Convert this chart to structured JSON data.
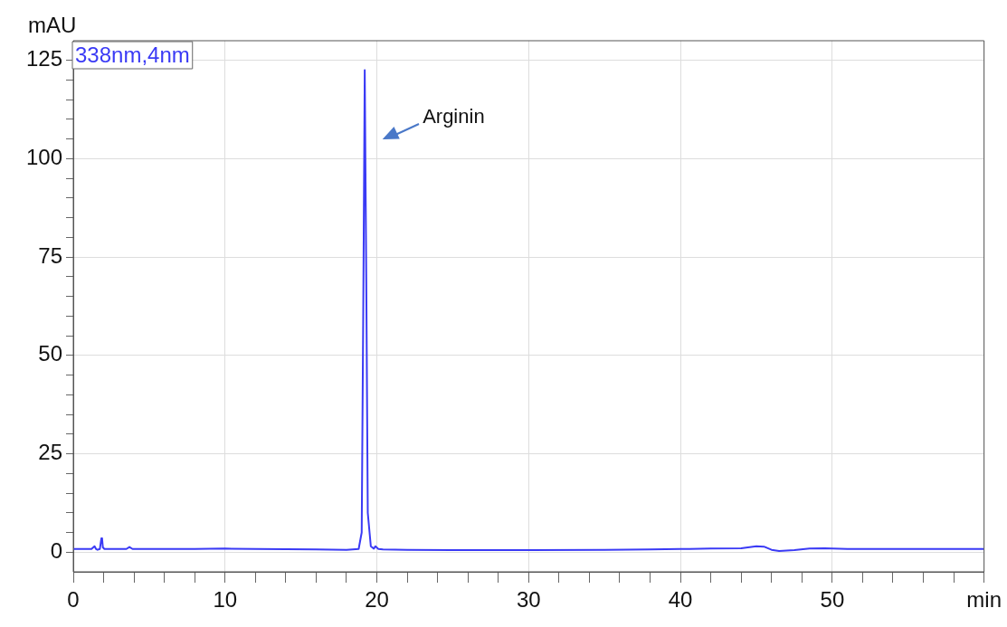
{
  "chart_data": {
    "type": "line",
    "ylabel": "mAU",
    "legend": "top left",
    "grid": true,
    "xlim": [
      0,
      60
    ],
    "ylim": [
      -5,
      130
    ],
    "xticks": [
      0,
      {
        "value": 2,
        "label": null
      },
      {
        "value": 4,
        "label": null
      },
      {
        "value": 6,
        "label": null
      },
      {
        "value": 8,
        "label": null
      },
      10,
      {
        "value": 12,
        "label": null
      },
      {
        "value": 14,
        "label": null
      },
      {
        "value": 16,
        "label": null
      },
      {
        "value": 18,
        "label": null
      },
      20,
      {
        "value": 22,
        "label": null
      },
      {
        "value": 24,
        "label": null
      },
      {
        "value": 26,
        "label": null
      },
      {
        "value": 28,
        "label": null
      },
      30,
      {
        "value": 32,
        "label": null
      },
      {
        "value": 34,
        "label": null
      },
      {
        "value": 36,
        "label": null
      },
      {
        "value": 38,
        "label": null
      },
      40,
      {
        "value": 42,
        "label": null
      },
      {
        "value": 44,
        "label": null
      },
      {
        "value": 46,
        "label": null
      },
      {
        "value": 48,
        "label": null
      },
      50,
      {
        "value": 52,
        "label": null
      },
      {
        "value": 54,
        "label": null
      },
      {
        "value": 56,
        "label": null
      },
      {
        "value": 58,
        "label": null
      },
      {
        "value": 60,
        "label": "min"
      }
    ],
    "yticks": [
      0,
      {
        "value": 5,
        "label": null
      },
      {
        "value": 10,
        "label": null
      },
      {
        "value": 15,
        "label": null
      },
      {
        "value": 20,
        "label": null
      },
      25,
      {
        "value": 30,
        "label": null
      },
      {
        "value": 35,
        "label": null
      },
      {
        "value": 40,
        "label": null
      },
      {
        "value": 45,
        "label": null
      },
      50,
      {
        "value": 55,
        "label": null
      },
      {
        "value": 60,
        "label": null
      },
      {
        "value": 65,
        "label": null
      },
      {
        "value": 70,
        "label": null
      },
      75,
      {
        "value": 80,
        "label": null
      },
      {
        "value": 85,
        "label": null
      },
      {
        "value": 90,
        "label": null
      },
      {
        "value": 95,
        "label": null
      },
      100,
      {
        "value": 105,
        "label": null
      },
      {
        "value": 110,
        "label": null
      },
      {
        "value": 115,
        "label": null
      },
      {
        "value": 120,
        "label": null
      },
      125
    ],
    "annotations": [
      "Arginin"
    ],
    "series": [
      {
        "name": "338nm,4nm",
        "color": "#3a3af5",
        "x": [
          0,
          1.2,
          1.4,
          1.5,
          1.6,
          1.75,
          1.85,
          1.9,
          1.95,
          2.05,
          2.2,
          3.5,
          3.7,
          3.9,
          8,
          10,
          12,
          16,
          18,
          18.8,
          19.0,
          19.1,
          19.2,
          19.3,
          19.4,
          19.6,
          19.8,
          19.9,
          20.1,
          20.4,
          22,
          25,
          30,
          35,
          38,
          40,
          42,
          44,
          45,
          45.5,
          46,
          46.5,
          47.5,
          48.5,
          49.5,
          51,
          55,
          60
        ],
        "values": [
          0.8,
          0.8,
          1.5,
          0.8,
          0.6,
          0.8,
          3.5,
          3.3,
          1.2,
          0.8,
          0.8,
          0.8,
          1.3,
          0.8,
          0.8,
          0.9,
          0.8,
          0.7,
          0.6,
          0.8,
          5,
          60,
          122.5,
          70,
          10,
          1.5,
          0.9,
          1.5,
          0.8,
          0.7,
          0.6,
          0.5,
          0.5,
          0.6,
          0.7,
          0.8,
          0.9,
          1.0,
          1.5,
          1.4,
          0.6,
          0.3,
          0.5,
          0.9,
          1.0,
          0.8,
          0.8,
          0.8
        ]
      }
    ]
  }
}
